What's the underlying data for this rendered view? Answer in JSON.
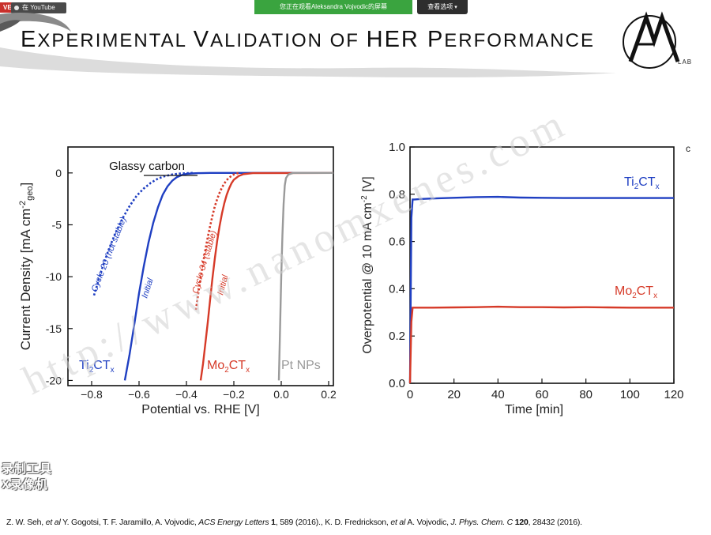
{
  "topbar": {
    "live_badge": "VE",
    "youtube_label": "在 YouTube",
    "share_banner": "您正在观看Aleksandra Vojvodic的屏幕",
    "view_options": "查看选项"
  },
  "slide": {
    "title_first": "E",
    "title_rest1": "XPERIMENTAL ",
    "title_v": "V",
    "title_rest2": "ALIDATION OF ",
    "title_her": "HER ",
    "title_p": "P",
    "title_rest3": "ERFORMANCE",
    "logo_lab": "LAB",
    "citation_1": "Z. W. Seh, ",
    "citation_2": "et al",
    "citation_3": " Y. Gogotsi, T. F. Jaramillo, A. Vojvodic, ",
    "citation_4": "ACS Energy Letters",
    "citation_5": " 1",
    "citation_6": ", 589 (2016)., K. D. Fredrickson, ",
    "citation_7": "et al",
    "citation_8": " A. Vojvodic, ",
    "citation_9": "J. Phys. Chem. C",
    "citation_10": " 120",
    "citation_11": ", 28432 (2016).",
    "watermark_line1": "录制工具",
    "watermark_line2": "X录像机",
    "site_watermark": "http://www.nanomxenes.com"
  },
  "colors": {
    "blue": "#1f3fc2",
    "red": "#d63a28",
    "gray": "#9a9a9a",
    "share_green": "#3aa43f"
  },
  "chart_data": [
    {
      "type": "line",
      "ylabel": "Current Density [mA cm⁻²geo]",
      "ylabel_parts": {
        "main": "Current Density [mA cm",
        "sup": "-2",
        "sub": "geo",
        "end": "]"
      },
      "xlabel": "Potential vs. RHE [V]",
      "xlim": [
        -0.9,
        0.22
      ],
      "ylim": [
        -20.5,
        2.5
      ],
      "xticks": [
        -0.8,
        -0.6,
        -0.4,
        -0.2,
        0.0,
        0.2
      ],
      "xtick_labels": [
        "−0.8",
        "−0.6",
        "−0.4",
        "−0.2",
        "0.0",
        "0.2"
      ],
      "yticks": [
        0,
        -5,
        -10,
        -15,
        -20
      ],
      "ytick_labels": [
        "0",
        "-5",
        "-10",
        "-15",
        "-20"
      ],
      "annotations": {
        "glassy_carbon": "Glassy carbon",
        "cycle20": "Cycle  20 (not stable)",
        "initial_ti": "Initial",
        "cycle34": "Cycle  34 (stable)",
        "initial_mo": "Initial",
        "ti_label": {
          "base": "Ti",
          "sub1": "2",
          "mid": "CT",
          "sub2": "x"
        },
        "mo_label": {
          "base": "Mo",
          "sub1": "2",
          "mid": "CT",
          "sub2": "x"
        },
        "pt_label": "Pt NPs"
      },
      "series": [
        {
          "key": "ti_initial",
          "color": "blue",
          "dash": false,
          "x": [
            -0.66,
            -0.64,
            -0.62,
            -0.6,
            -0.58,
            -0.56,
            -0.54,
            -0.52,
            -0.5,
            -0.48,
            -0.46,
            -0.44,
            -0.42,
            -0.4,
            -0.38,
            -0.35,
            -0.3,
            0.22
          ],
          "y": [
            -20,
            -17.5,
            -14.6,
            -11.6,
            -9.0,
            -6.7,
            -4.8,
            -3.3,
            -2.1,
            -1.3,
            -0.75,
            -0.4,
            -0.2,
            -0.1,
            -0.05,
            -0.02,
            0,
            0
          ]
        },
        {
          "key": "ti_cycle20",
          "color": "blue",
          "dash": true,
          "x": [
            -0.79,
            -0.76,
            -0.73,
            -0.7,
            -0.67,
            -0.64,
            -0.61,
            -0.58,
            -0.55,
            -0.52,
            -0.49,
            -0.46,
            -0.43,
            -0.4,
            -0.37
          ],
          "y": [
            -11.8,
            -9.5,
            -7.5,
            -5.8,
            -4.4,
            -3.2,
            -2.2,
            -1.5,
            -0.95,
            -0.55,
            -0.3,
            -0.15,
            -0.07,
            -0.03,
            0
          ]
        },
        {
          "key": "mo_initial",
          "color": "red",
          "dash": false,
          "x": [
            -0.34,
            -0.33,
            -0.32,
            -0.31,
            -0.3,
            -0.29,
            -0.28,
            -0.27,
            -0.26,
            -0.25,
            -0.24,
            -0.23,
            -0.22,
            -0.21,
            -0.2,
            -0.18,
            -0.16,
            -0.12,
            0.22
          ],
          "y": [
            -20,
            -18.4,
            -16.4,
            -14.4,
            -12.2,
            -10.1,
            -8.2,
            -6.5,
            -5.1,
            -3.9,
            -2.9,
            -2.1,
            -1.5,
            -1.0,
            -0.65,
            -0.3,
            -0.12,
            -0.02,
            0
          ]
        },
        {
          "key": "mo_cycle34",
          "color": "red",
          "dash": true,
          "x": [
            -0.36,
            -0.35,
            -0.34,
            -0.33,
            -0.32,
            -0.31,
            -0.3,
            -0.29,
            -0.28,
            -0.27,
            -0.26,
            -0.25,
            -0.24,
            -0.23,
            -0.22,
            -0.2,
            -0.18
          ],
          "y": [
            -13.2,
            -11.6,
            -10.1,
            -8.7,
            -7.4,
            -6.2,
            -5.1,
            -4.1,
            -3.2,
            -2.5,
            -1.9,
            -1.4,
            -1.0,
            -0.7,
            -0.45,
            -0.15,
            0
          ]
        },
        {
          "key": "pt",
          "color": "gray",
          "dash": false,
          "x": [
            -0.01,
            -0.005,
            0.0,
            0.005,
            0.01,
            0.015,
            0.02,
            0.03,
            0.05,
            0.22
          ],
          "y": [
            -20,
            -15,
            -10,
            -6,
            -3,
            -1.2,
            -0.5,
            -0.15,
            0,
            0
          ]
        }
      ]
    },
    {
      "type": "line",
      "ylabel": "Overpotential @ 10 mA cm⁻² [V]",
      "ylabel_parts": {
        "main": "Overpotential @ 10 mA cm",
        "sup": "-2",
        "end": " [V]"
      },
      "xlabel": "Time [min]",
      "xlim": [
        0,
        120
      ],
      "ylim": [
        0.0,
        1.0
      ],
      "xticks": [
        0,
        20,
        40,
        60,
        80,
        100,
        120
      ],
      "xtick_labels": [
        "0",
        "20",
        "40",
        "60",
        "80",
        "100",
        "120"
      ],
      "yticks": [
        0.0,
        0.2,
        0.4,
        0.6,
        0.8,
        1.0
      ],
      "ytick_labels": [
        "0.0",
        "0.2",
        "0.4",
        "0.6",
        "0.8",
        "1.0"
      ],
      "panel_letter": "c",
      "labels": {
        "ti_label": {
          "base": "Ti",
          "sub1": "2",
          "mid": "CT",
          "sub2": "x"
        },
        "mo_label": {
          "base": "Mo",
          "sub1": "2",
          "mid": "CT",
          "sub2": "x"
        }
      },
      "series": [
        {
          "key": "ti",
          "color": "blue",
          "x": [
            0,
            0.6,
            1.2,
            2,
            5,
            10,
            20,
            30,
            40,
            50,
            60,
            70,
            80,
            90,
            100,
            110,
            120
          ],
          "y": [
            0.0,
            0.7,
            0.778,
            0.778,
            0.78,
            0.782,
            0.785,
            0.788,
            0.789,
            0.786,
            0.785,
            0.784,
            0.784,
            0.784,
            0.784,
            0.784,
            0.784
          ]
        },
        {
          "key": "mo",
          "color": "red",
          "x": [
            0,
            0.6,
            1.2,
            2,
            10,
            20,
            30,
            40,
            50,
            60,
            70,
            80,
            90,
            100,
            110,
            120
          ],
          "y": [
            0.0,
            0.26,
            0.32,
            0.32,
            0.32,
            0.321,
            0.322,
            0.324,
            0.322,
            0.322,
            0.321,
            0.322,
            0.321,
            0.32,
            0.32,
            0.32
          ]
        }
      ]
    }
  ]
}
